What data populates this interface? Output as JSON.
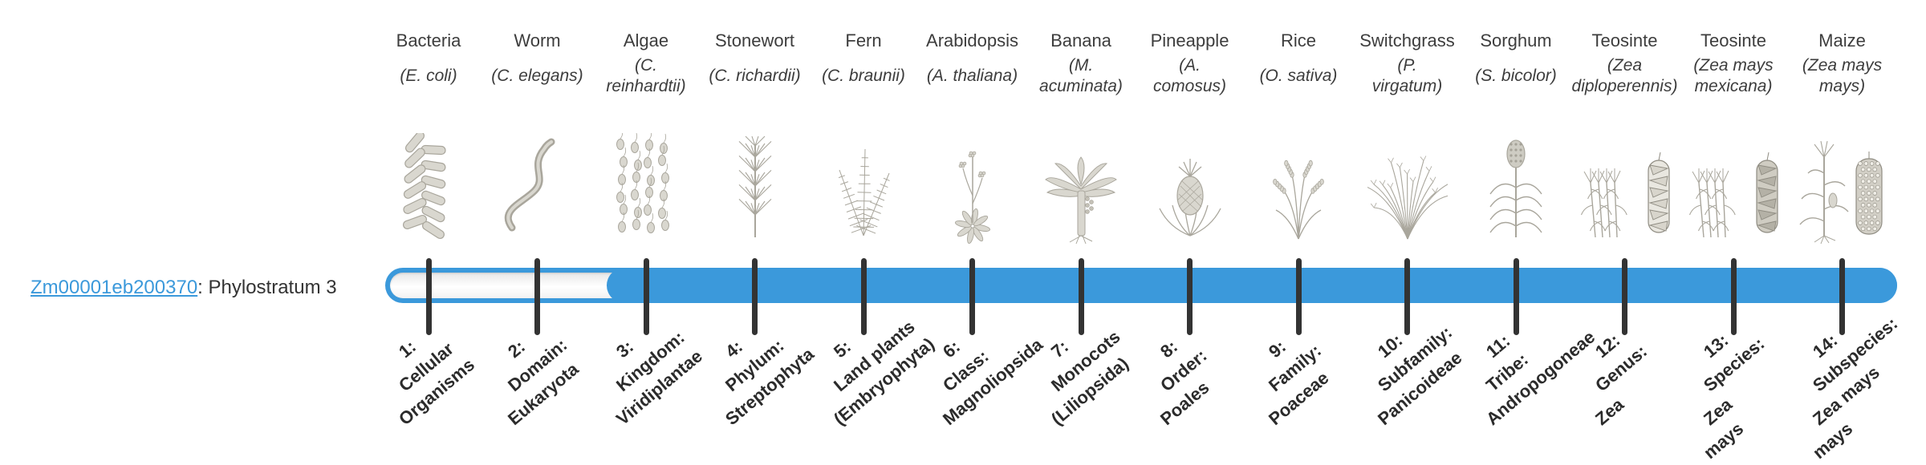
{
  "gene": {
    "id": "Zm00001eb200370",
    "suffix": ": Phylostratum 3",
    "phylostratum": 3
  },
  "columns": [
    {
      "common": "Bacteria",
      "scientific": "(E. coli)",
      "icon": "bacteria",
      "stratum": [
        "1:",
        "Cellular",
        "Organisms"
      ]
    },
    {
      "common": "Worm",
      "scientific": "(C. elegans)",
      "icon": "worm",
      "stratum": [
        "2:",
        "Domain:",
        "Eukaryota"
      ]
    },
    {
      "common": "Algae",
      "scientific": "(C.\nreinhardtii)",
      "icon": "algae",
      "stratum": [
        "3:",
        "Kingdom:",
        "Viridiplantae"
      ]
    },
    {
      "common": "Stonewort",
      "scientific": "(C. richardii)",
      "icon": "stonewort",
      "stratum": [
        "4:",
        "Phylum:",
        "Streptophyta"
      ]
    },
    {
      "common": "Fern",
      "scientific": "(C. braunii)",
      "icon": "fern",
      "stratum": [
        "5:",
        "Land plants",
        "(Embryophyta)"
      ]
    },
    {
      "common": "Arabidopsis",
      "scientific": "(A. thaliana)",
      "icon": "arabidopsis",
      "stratum": [
        "6:",
        "Class:",
        "Magnoliopsida"
      ]
    },
    {
      "common": "Banana",
      "scientific": "(M.\nacuminata)",
      "icon": "banana",
      "stratum": [
        "7:",
        "Monocots",
        "(Liliopsida)"
      ]
    },
    {
      "common": "Pineapple",
      "scientific": "(A.\ncomosus)",
      "icon": "pineapple",
      "stratum": [
        "8:",
        "Order:",
        "Poales"
      ]
    },
    {
      "common": "Rice",
      "scientific": "(O. sativa)",
      "icon": "rice",
      "stratum": [
        "9:",
        "Family:",
        "Poaceae"
      ]
    },
    {
      "common": "Switchgrass",
      "scientific": "(P.\nvirgatum)",
      "icon": "switchgrass",
      "stratum": [
        "10:",
        "Subfamily:",
        "Panicoideae"
      ]
    },
    {
      "common": "Sorghum",
      "scientific": "(S. bicolor)",
      "icon": "sorghum",
      "stratum": [
        "11:",
        "Tribe:",
        "Andropogoneae"
      ]
    },
    {
      "common": "Teosinte",
      "scientific": "(Zea\ndiploperennis)",
      "icon": "teosinte-diploperennis",
      "stratum": [
        "12:",
        "Genus:",
        "Zea"
      ]
    },
    {
      "common": "Teosinte",
      "scientific": "(Zea mays\nmexicana)",
      "icon": "teosinte-mexicana",
      "stratum": [
        "13:",
        "Species:",
        "Zea",
        "mays"
      ]
    },
    {
      "common": "Maize",
      "scientific": "(Zea mays\nmays)",
      "icon": "maize",
      "stratum": [
        "14:",
        "Subspecies:",
        "Zea mays",
        "mays"
      ]
    }
  ],
  "colors": {
    "bar": "#3b99db",
    "tick": "#333333",
    "link": "#3b99db",
    "unfilled_track": "#f7f7f7",
    "illustration_line": "#a9a69c",
    "illustration_fill": "#d9d7cf"
  }
}
